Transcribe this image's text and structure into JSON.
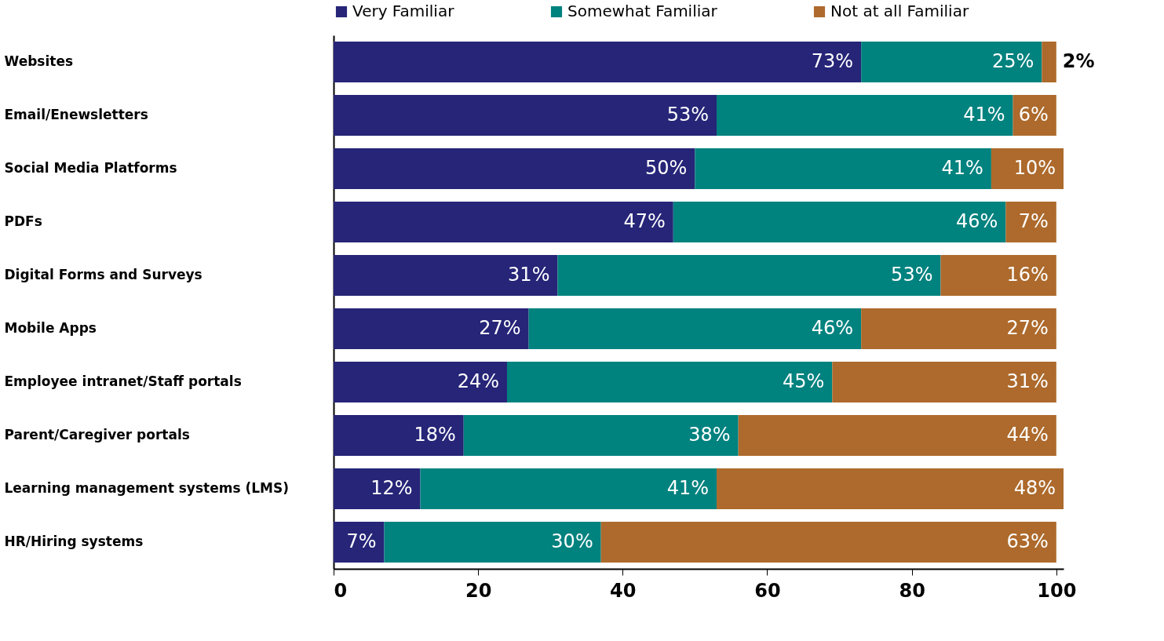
{
  "chart_data": {
    "type": "bar",
    "orientation": "horizontal",
    "stacked": true,
    "grid": false,
    "legend": "top left",
    "categories": [
      "Websites",
      "Email/Enewsletters",
      "Social Media Platforms",
      "PDFs",
      "Digital Forms and Surveys",
      "Mobile Apps",
      "Employee intranet/Staff portals",
      "Parent/Caregiver portals",
      "Learning management systems (LMS)",
      "HR/Hiring systems"
    ],
    "series": [
      {
        "name": "Very Familiar",
        "color": "#262578",
        "values": [
          73,
          53,
          50,
          47,
          31,
          27,
          24,
          18,
          12,
          7
        ],
        "value_labels": [
          "73%",
          "53%",
          "50%",
          "47%",
          "31%",
          "27%",
          "24%",
          "18%",
          "12%",
          "7%"
        ]
      },
      {
        "name": "Somewhat Familiar",
        "color": "#00827f",
        "values": [
          25,
          41,
          41,
          46,
          53,
          46,
          45,
          38,
          41,
          30
        ],
        "value_labels": [
          "25%",
          "41%",
          "41%",
          "46%",
          "53%",
          "46%",
          "45%",
          "38%",
          "41%",
          "30%"
        ]
      },
      {
        "name": "Not at all Familiar",
        "color": "#ad6a2c",
        "values": [
          2,
          6,
          10,
          7,
          16,
          27,
          31,
          44,
          48,
          63
        ],
        "value_labels": [
          "2%",
          "6%",
          "10%",
          "7%",
          "16%",
          "27%",
          "31%",
          "44%",
          "48%",
          "63%"
        ]
      }
    ],
    "xlim": [
      0,
      101
    ],
    "xticks": [
      0,
      20,
      40,
      60,
      80,
      100
    ]
  }
}
